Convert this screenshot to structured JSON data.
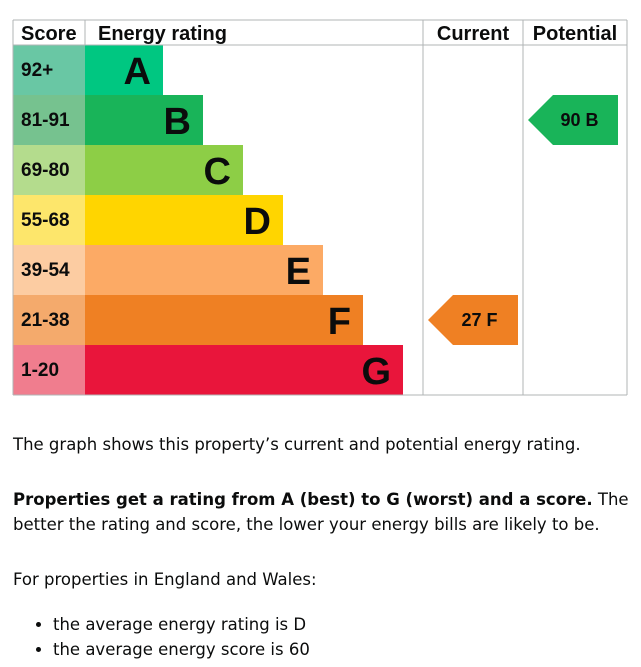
{
  "chart_data": {
    "type": "bar",
    "headers": {
      "score": "Score",
      "rating": "Energy rating",
      "current": "Current",
      "potential": "Potential"
    },
    "bands": [
      {
        "letter": "A",
        "range": "92+",
        "color": "#00c781",
        "score_bg": "#69c7a4"
      },
      {
        "letter": "B",
        "range": "81-91",
        "color": "#19b459",
        "score_bg": "#76c28f"
      },
      {
        "letter": "C",
        "range": "69-80",
        "color": "#8dce46",
        "score_bg": "#b4dc8d"
      },
      {
        "letter": "D",
        "range": "55-68",
        "color": "#ffd500",
        "score_bg": "#fde66b"
      },
      {
        "letter": "E",
        "range": "39-54",
        "color": "#fcaa65",
        "score_bg": "#fccca2"
      },
      {
        "letter": "F",
        "range": "21-38",
        "color": "#ef8023",
        "score_bg": "#f4aa6c"
      },
      {
        "letter": "G",
        "range": "1-20",
        "color": "#e9153b",
        "score_bg": "#f07d8e"
      }
    ],
    "current": {
      "score": 27,
      "band": "F",
      "label": "27 F",
      "color": "#ef8023"
    },
    "potential": {
      "score": 90,
      "band": "B",
      "label": "90 B",
      "color": "#19b459"
    }
  },
  "text": {
    "p1": "The graph shows this property’s current and potential energy rating.",
    "p2_bold": "Properties get a rating from A (best) to G (worst) and a score.",
    "p2_rest": " The better the rating and score, the lower your energy bills are likely to be.",
    "p3": "For properties in England and Wales:",
    "avg_items": [
      "the average energy rating is D",
      "the average energy score is 60"
    ]
  }
}
